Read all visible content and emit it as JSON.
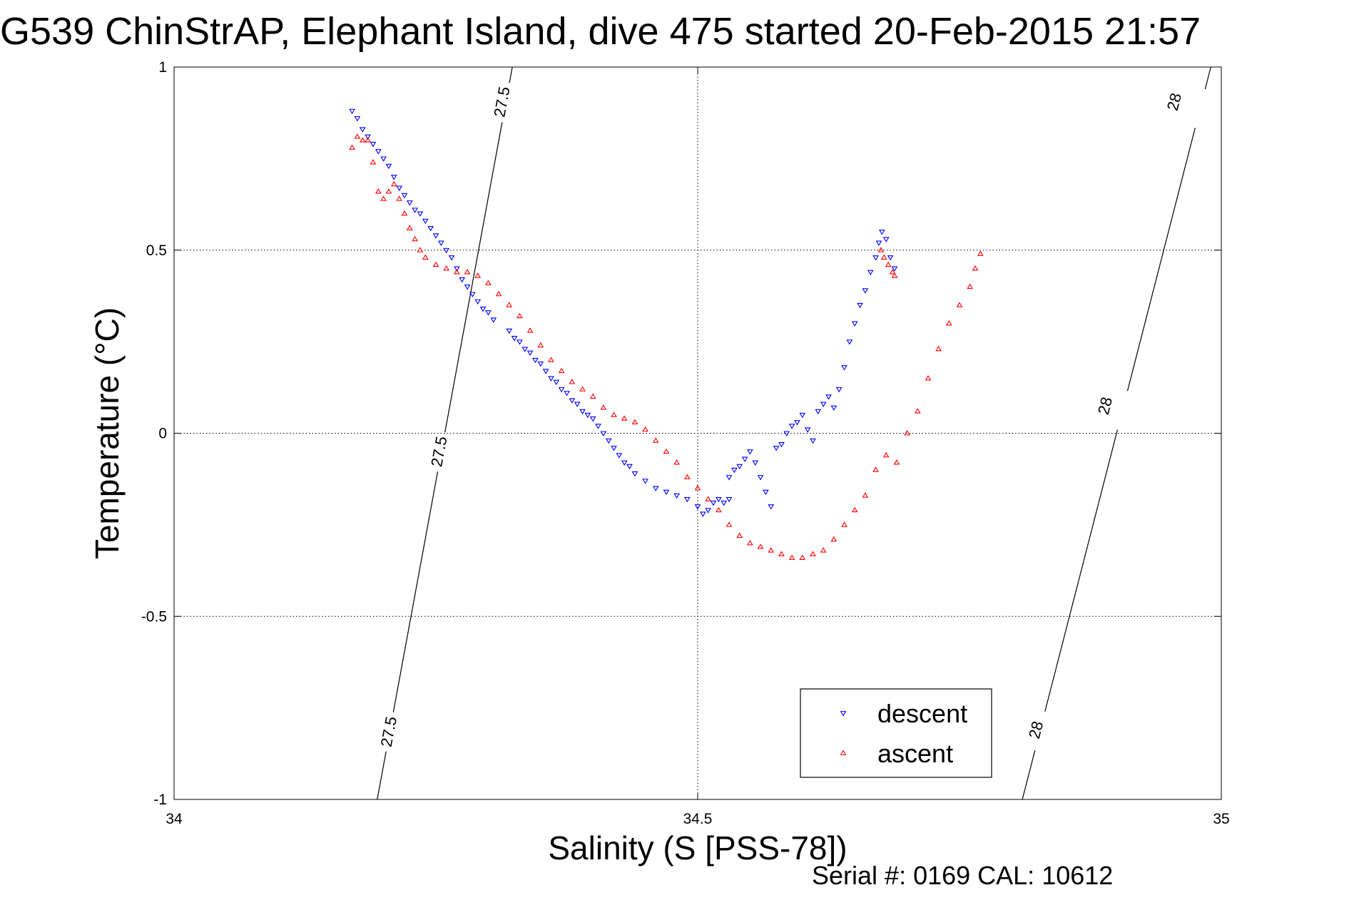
{
  "chart_data": {
    "type": "scatter",
    "title": "G539 ChinStrAP, Elephant Island, dive 475 started 20-Feb-2015 21:57",
    "xlabel": "Salinity (S [PSS-78])",
    "ylabel": "Temperature (°C)",
    "xlim": [
      34,
      35
    ],
    "ylim": [
      -1,
      1
    ],
    "xticks": [
      34,
      34.5,
      35
    ],
    "xtick_labels": [
      "34",
      "34.5",
      "35"
    ],
    "yticks": [
      1,
      0.5,
      0,
      -0.5,
      -1
    ],
    "ytick_labels": [
      "1",
      "0.5",
      "0",
      "-0.5",
      "-1"
    ],
    "grid": true,
    "legend_position": "bottom-right",
    "density_contours": [
      {
        "label": "27.5",
        "segments": [
          [
            34.194,
            -1.0
          ],
          [
            34.323,
            1.0
          ]
        ],
        "label_positions": [
          [
            34.205,
            -0.815
          ],
          [
            34.253,
            -0.05
          ],
          [
            34.313,
            0.905
          ]
        ]
      },
      {
        "label": "28",
        "segments": [
          [
            34.81,
            -1.0
          ],
          [
            34.99,
            1.0
          ]
        ],
        "label_positions": [
          [
            34.823,
            -0.81
          ],
          [
            34.889,
            0.075
          ],
          [
            34.955,
            0.905
          ]
        ]
      }
    ],
    "series": [
      {
        "name": "descent",
        "marker": "triangle-down",
        "color": "#0000ff",
        "points": [
          [
            34.17,
            0.88
          ],
          [
            34.175,
            0.86
          ],
          [
            34.18,
            0.83
          ],
          [
            34.185,
            0.81
          ],
          [
            34.19,
            0.79
          ],
          [
            34.195,
            0.77
          ],
          [
            34.2,
            0.75
          ],
          [
            34.205,
            0.73
          ],
          [
            34.21,
            0.7
          ],
          [
            34.215,
            0.67
          ],
          [
            34.22,
            0.65
          ],
          [
            34.225,
            0.63
          ],
          [
            34.23,
            0.61
          ],
          [
            34.235,
            0.6
          ],
          [
            34.24,
            0.58
          ],
          [
            34.245,
            0.56
          ],
          [
            34.25,
            0.54
          ],
          [
            34.255,
            0.52
          ],
          [
            34.26,
            0.5
          ],
          [
            34.265,
            0.48
          ],
          [
            34.27,
            0.45
          ],
          [
            34.275,
            0.42
          ],
          [
            34.28,
            0.4
          ],
          [
            34.285,
            0.38
          ],
          [
            34.29,
            0.36
          ],
          [
            34.295,
            0.34
          ],
          [
            34.3,
            0.33
          ],
          [
            34.305,
            0.31
          ],
          [
            34.32,
            0.28
          ],
          [
            34.325,
            0.26
          ],
          [
            34.33,
            0.25
          ],
          [
            34.335,
            0.23
          ],
          [
            34.34,
            0.22
          ],
          [
            34.345,
            0.2
          ],
          [
            34.35,
            0.19
          ],
          [
            34.355,
            0.17
          ],
          [
            34.36,
            0.15
          ],
          [
            34.365,
            0.14
          ],
          [
            34.37,
            0.12
          ],
          [
            34.375,
            0.11
          ],
          [
            34.38,
            0.09
          ],
          [
            34.385,
            0.08
          ],
          [
            34.39,
            0.06
          ],
          [
            34.395,
            0.05
          ],
          [
            34.4,
            0.04
          ],
          [
            34.405,
            0.02
          ],
          [
            34.41,
            0.0
          ],
          [
            34.415,
            -0.02
          ],
          [
            34.42,
            -0.04
          ],
          [
            34.425,
            -0.06
          ],
          [
            34.43,
            -0.08
          ],
          [
            34.435,
            -0.09
          ],
          [
            34.44,
            -0.11
          ],
          [
            34.45,
            -0.13
          ],
          [
            34.46,
            -0.15
          ],
          [
            34.47,
            -0.16
          ],
          [
            34.48,
            -0.17
          ],
          [
            34.49,
            -0.18
          ],
          [
            34.5,
            -0.2
          ],
          [
            34.505,
            -0.22
          ],
          [
            34.51,
            -0.21
          ],
          [
            34.515,
            -0.19
          ],
          [
            34.52,
            -0.18
          ],
          [
            34.525,
            -0.19
          ],
          [
            34.53,
            -0.18
          ],
          [
            34.53,
            -0.12
          ],
          [
            34.535,
            -0.1
          ],
          [
            34.54,
            -0.09
          ],
          [
            34.545,
            -0.07
          ],
          [
            34.55,
            -0.05
          ],
          [
            34.555,
            -0.08
          ],
          [
            34.56,
            -0.12
          ],
          [
            34.565,
            -0.16
          ],
          [
            34.57,
            -0.2
          ],
          [
            34.575,
            -0.04
          ],
          [
            34.58,
            -0.03
          ],
          [
            34.585,
            0.0
          ],
          [
            34.59,
            0.02
          ],
          [
            34.595,
            0.03
          ],
          [
            34.6,
            0.05
          ],
          [
            34.605,
            0.01
          ],
          [
            34.61,
            -0.02
          ],
          [
            34.615,
            0.06
          ],
          [
            34.62,
            0.08
          ],
          [
            34.625,
            0.1
          ],
          [
            34.63,
            0.07
          ],
          [
            34.635,
            0.12
          ],
          [
            34.64,
            0.18
          ],
          [
            34.645,
            0.25
          ],
          [
            34.65,
            0.3
          ],
          [
            34.655,
            0.35
          ],
          [
            34.66,
            0.39
          ],
          [
            34.665,
            0.44
          ],
          [
            34.67,
            0.48
          ],
          [
            34.673,
            0.52
          ],
          [
            34.676,
            0.55
          ],
          [
            34.68,
            0.53
          ],
          [
            34.684,
            0.48
          ],
          [
            34.688,
            0.45
          ]
        ]
      },
      {
        "name": "ascent",
        "marker": "triangle-up",
        "color": "#ff0000",
        "points": [
          [
            34.17,
            0.78
          ],
          [
            34.175,
            0.81
          ],
          [
            34.18,
            0.8
          ],
          [
            34.185,
            0.8
          ],
          [
            34.19,
            0.74
          ],
          [
            34.195,
            0.66
          ],
          [
            34.2,
            0.64
          ],
          [
            34.205,
            0.66
          ],
          [
            34.21,
            0.68
          ],
          [
            34.215,
            0.64
          ],
          [
            34.22,
            0.6
          ],
          [
            34.225,
            0.56
          ],
          [
            34.23,
            0.53
          ],
          [
            34.235,
            0.5
          ],
          [
            34.24,
            0.48
          ],
          [
            34.25,
            0.46
          ],
          [
            34.26,
            0.45
          ],
          [
            34.27,
            0.44
          ],
          [
            34.28,
            0.44
          ],
          [
            34.29,
            0.43
          ],
          [
            34.3,
            0.41
          ],
          [
            34.31,
            0.38
          ],
          [
            34.32,
            0.35
          ],
          [
            34.33,
            0.32
          ],
          [
            34.34,
            0.28
          ],
          [
            34.35,
            0.24
          ],
          [
            34.36,
            0.2
          ],
          [
            34.37,
            0.17
          ],
          [
            34.38,
            0.14
          ],
          [
            34.39,
            0.12
          ],
          [
            34.4,
            0.1
          ],
          [
            34.41,
            0.07
          ],
          [
            34.42,
            0.05
          ],
          [
            34.43,
            0.04
          ],
          [
            34.44,
            0.03
          ],
          [
            34.45,
            0.01
          ],
          [
            34.46,
            -0.02
          ],
          [
            34.47,
            -0.05
          ],
          [
            34.48,
            -0.08
          ],
          [
            34.49,
            -0.12
          ],
          [
            34.5,
            -0.15
          ],
          [
            34.51,
            -0.18
          ],
          [
            34.52,
            -0.21
          ],
          [
            34.53,
            -0.25
          ],
          [
            34.54,
            -0.28
          ],
          [
            34.55,
            -0.3
          ],
          [
            34.56,
            -0.31
          ],
          [
            34.57,
            -0.32
          ],
          [
            34.58,
            -0.33
          ],
          [
            34.59,
            -0.34
          ],
          [
            34.6,
            -0.34
          ],
          [
            34.61,
            -0.33
          ],
          [
            34.62,
            -0.32
          ],
          [
            34.63,
            -0.29
          ],
          [
            34.64,
            -0.25
          ],
          [
            34.65,
            -0.21
          ],
          [
            34.66,
            -0.17
          ],
          [
            34.67,
            -0.1
          ],
          [
            34.68,
            -0.06
          ],
          [
            34.69,
            -0.08
          ],
          [
            34.7,
            0.0
          ],
          [
            34.71,
            0.06
          ],
          [
            34.72,
            0.15
          ],
          [
            34.73,
            0.23
          ],
          [
            34.74,
            0.3
          ],
          [
            34.75,
            0.35
          ],
          [
            34.76,
            0.4
          ],
          [
            34.765,
            0.45
          ],
          [
            34.77,
            0.49
          ],
          [
            34.675,
            0.5
          ],
          [
            34.678,
            0.48
          ],
          [
            34.682,
            0.46
          ],
          [
            34.686,
            0.44
          ],
          [
            34.688,
            0.43
          ]
        ]
      }
    ],
    "footer": "Serial #: 0169 CAL: 10612"
  },
  "colors": {
    "descent": "#0000ff",
    "ascent": "#ff0000",
    "axis": "#000000",
    "grid": "#000000"
  }
}
